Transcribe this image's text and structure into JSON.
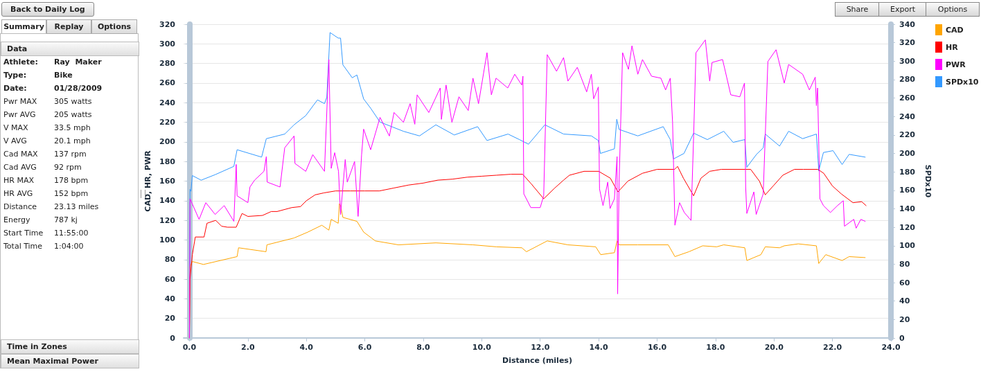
{
  "chart_data": {
    "type": "line",
    "xlabel": "Distance (miles)",
    "ylabel": "CAD, HR, PWR",
    "y2label": "SPDx10",
    "xlim": [
      -0.2,
      24
    ],
    "xticks": [
      {
        "value": 0,
        "label": "0.0"
      },
      {
        "value": 2,
        "label": "2.0"
      },
      {
        "value": 4,
        "label": "4.0"
      },
      {
        "value": 6,
        "label": "6.0"
      },
      {
        "value": 8,
        "label": "8.0"
      },
      {
        "value": 10,
        "label": "10.0"
      },
      {
        "value": 12,
        "label": "12.0"
      },
      {
        "value": 14,
        "label": "14.0"
      },
      {
        "value": 16,
        "label": "16.0"
      },
      {
        "value": 18,
        "label": "18.0"
      },
      {
        "value": 20,
        "label": "20.0"
      },
      {
        "value": 22,
        "label": "22.0"
      },
      {
        "value": 24,
        "label": "24.0"
      }
    ],
    "ylim": [
      0,
      320
    ],
    "yticks": [
      0,
      20,
      40,
      60,
      80,
      100,
      120,
      140,
      160,
      180,
      200,
      220,
      240,
      260,
      280,
      300,
      320
    ],
    "y2lim": [
      0,
      340
    ],
    "y2ticks": [
      0,
      20,
      40,
      60,
      80,
      100,
      120,
      140,
      160,
      180,
      200,
      220,
      240,
      260,
      280,
      300,
      320,
      340
    ],
    "grid": "y",
    "legend": "top right",
    "marker": "none",
    "line_style": "solid",
    "series": [
      {
        "name": "CAD",
        "color": "#ffa500",
        "x": [
          0,
          0.02,
          0.1,
          0.48,
          1.63,
          1.68,
          2.62,
          2.65,
          3.58,
          4.05,
          4.53,
          4.77,
          4.85,
          5.09,
          5.13,
          5.17,
          5.25,
          5.73,
          5.96,
          6.36,
          7.15,
          8.43,
          9.7,
          10.5,
          11.37,
          11.53,
          12.24,
          12.95,
          13.9,
          14.07,
          14.54,
          14.63,
          14.7,
          15.34,
          16.38,
          16.61,
          17.09,
          17.56,
          18.04,
          18.28,
          19.0,
          19.07,
          19.55,
          19.7,
          20.19,
          20.35,
          20.83,
          21.45,
          21.53,
          21.77,
          22.33,
          22.57,
          23.12
        ],
        "values": [
          0,
          73,
          78,
          75,
          83,
          92,
          88,
          95,
          102,
          108,
          115,
          110,
          121,
          117,
          137,
          135,
          123,
          119,
          108,
          99,
          95,
          97,
          95,
          93,
          92,
          88,
          99,
          95,
          93,
          85,
          87,
          99,
          95,
          95,
          95,
          83,
          88,
          94,
          93,
          95,
          92,
          79,
          85,
          93,
          92,
          94,
          96,
          94,
          76,
          85,
          79,
          83,
          82
        ]
      },
      {
        "name": "HR",
        "color": "#ff0000",
        "x": [
          0,
          0.02,
          0.1,
          0.2,
          0.5,
          0.6,
          0.9,
          1.1,
          1.3,
          1.6,
          1.8,
          2.0,
          2.5,
          2.8,
          3.0,
          3.5,
          3.8,
          4.0,
          4.3,
          4.6,
          5.0,
          5.5,
          6.0,
          6.5,
          7.0,
          7.5,
          8.0,
          8.5,
          9.0,
          9.5,
          10.0,
          10.5,
          11.0,
          11.4,
          11.7,
          12.12,
          12.5,
          12.8,
          13.0,
          13.5,
          14.0,
          14.4,
          14.66,
          15.0,
          15.5,
          16.0,
          16.6,
          16.7,
          16.9,
          17.25,
          17.5,
          17.8,
          18.2,
          19.0,
          19.2,
          19.5,
          19.7,
          20.0,
          20.3,
          20.7,
          21.0,
          21.5,
          21.7,
          22.0,
          22.3,
          22.7,
          23.0,
          23.15
        ],
        "values": [
          0,
          60,
          85,
          103,
          103,
          117,
          120,
          114,
          113,
          113,
          127,
          124,
          125,
          129,
          129,
          133,
          134,
          140,
          146,
          148,
          150,
          150,
          150,
          150,
          153,
          156,
          158,
          161,
          162,
          164,
          165,
          166,
          167,
          167,
          157,
          142,
          153,
          161,
          166,
          170,
          170,
          163,
          149,
          160,
          168,
          172,
          172,
          175,
          163,
          145,
          163,
          170,
          172,
          172,
          172,
          160,
          146,
          156,
          166,
          172,
          172,
          172,
          168,
          155,
          147,
          138,
          139,
          135
        ]
      },
      {
        "name": "PWR",
        "color": "#ff00ff",
        "x": [
          0,
          0.02,
          0.33,
          0.56,
          0.88,
          1.19,
          1.52,
          1.6,
          1.63,
          2.0,
          2.07,
          2.23,
          2.55,
          2.63,
          2.66,
          3.1,
          3.26,
          3.58,
          3.61,
          3.98,
          4.22,
          4.62,
          4.77,
          4.85,
          4.97,
          5.1,
          5.17,
          5.33,
          5.4,
          5.65,
          5.77,
          5.89,
          5.96,
          6.2,
          6.52,
          6.84,
          7.0,
          7.32,
          7.55,
          7.71,
          7.79,
          8.19,
          8.58,
          8.62,
          8.78,
          8.98,
          9.22,
          9.54,
          9.7,
          9.89,
          10.18,
          10.33,
          10.49,
          10.89,
          11.13,
          11.37,
          11.41,
          11.44,
          11.68,
          12.0,
          12.12,
          12.24,
          12.56,
          12.8,
          12.95,
          13.27,
          13.59,
          13.75,
          13.83,
          13.99,
          14.03,
          14.15,
          14.31,
          14.39,
          14.54,
          14.63,
          14.65,
          14.7,
          14.82,
          15.02,
          15.14,
          15.34,
          15.5,
          15.81,
          16.13,
          16.29,
          16.45,
          16.53,
          16.61,
          16.77,
          16.93,
          17.16,
          17.25,
          17.33,
          17.65,
          17.8,
          17.88,
          18.24,
          18.52,
          18.83,
          18.99,
          19.03,
          19.07,
          19.31,
          19.39,
          19.63,
          19.79,
          20.07,
          20.35,
          20.5,
          20.98,
          21.21,
          21.41,
          21.45,
          21.49,
          21.57,
          21.69,
          21.93,
          22.17,
          22.37,
          22.41,
          22.73,
          22.81,
          22.97,
          23.12
        ],
        "values": [
          0,
          142,
          121,
          138,
          126,
          135,
          119,
          177,
          145,
          138,
          154,
          161,
          170,
          185,
          159,
          154,
          194,
          206,
          178,
          170,
          187,
          170,
          284,
          173,
          189,
          170,
          126,
          182,
          159,
          180,
          124,
          187,
          213,
          192,
          225,
          206,
          230,
          220,
          239,
          218,
          248,
          230,
          255,
          223,
          258,
          220,
          246,
          232,
          265,
          239,
          291,
          248,
          265,
          255,
          269,
          258,
          267,
          147,
          133,
          133,
          145,
          289,
          272,
          286,
          262,
          276,
          251,
          269,
          244,
          256,
          152,
          135,
          159,
          132,
          142,
          185,
          45,
          159,
          291,
          274,
          298,
          269,
          284,
          267,
          265,
          253,
          265,
          220,
          115,
          138,
          128,
          120,
          206,
          291,
          304,
          262,
          281,
          284,
          248,
          246,
          260,
          154,
          127,
          149,
          126,
          147,
          282,
          294,
          260,
          279,
          269,
          253,
          266,
          237,
          255,
          142,
          135,
          128,
          135,
          140,
          114,
          121,
          112,
          121,
          119
        ]
      },
      {
        "name": "SPDx10",
        "color": "#3399ff",
        "axis": "y2",
        "x": [
          0,
          0.02,
          0.05,
          0.1,
          0.4,
          0.88,
          1.52,
          1.63,
          2.47,
          2.63,
          3.26,
          3.58,
          3.98,
          4.38,
          4.62,
          4.7,
          4.81,
          5.09,
          5.17,
          5.25,
          5.57,
          5.73,
          5.96,
          6.2,
          6.52,
          7.32,
          7.87,
          8.43,
          9.06,
          9.86,
          10.18,
          10.9,
          11.29,
          11.6,
          12.16,
          12.8,
          13.75,
          13.99,
          14.06,
          14.54,
          14.62,
          14.7,
          15.34,
          16.21,
          16.45,
          16.56,
          16.92,
          17.25,
          17.72,
          18.28,
          18.6,
          19.0,
          19.07,
          19.4,
          19.63,
          19.7,
          20.19,
          20.5,
          20.98,
          21.45,
          21.53,
          21.69,
          22.02,
          22.33,
          22.57,
          23.12
        ],
        "values": [
          0,
          161,
          159,
          176,
          171,
          177,
          186,
          204,
          196,
          216,
          221,
          231,
          241,
          258,
          254,
          261,
          331,
          325,
          325,
          296,
          282,
          285,
          259,
          249,
          234,
          224,
          219,
          231,
          220,
          229,
          214,
          221,
          215,
          210,
          231,
          221,
          219,
          214,
          200,
          205,
          237,
          226,
          219,
          229,
          215,
          194,
          200,
          222,
          215,
          224,
          212,
          215,
          185,
          199,
          206,
          221,
          208,
          224,
          216,
          221,
          181,
          201,
          203,
          188,
          199,
          196
        ]
      }
    ],
    "annotations": [
      "Back to Daily Log",
      "Summary",
      "Replay",
      "Options",
      "Data",
      "Athlete:",
      "Ray  Maker",
      "Type:",
      "Bike",
      "Date:",
      "01/28/2009",
      "Pwr MAX",
      "305 watts",
      "Pwr AVG",
      "205 watts",
      "V MAX",
      "33.5 mph",
      "V AVG",
      "20.1 mph",
      "Cad MAX",
      "137 rpm",
      "Cad AVG",
      "92 rpm",
      "HR MAX",
      "178 bpm",
      "HR AVG",
      "152 bpm",
      "Distance",
      "23.13 miles",
      "Energy",
      "787 kj",
      "Start Time",
      "11:55:00",
      "Total Time",
      "1:04:00",
      "Time in Zones",
      "Mean Maximal Power",
      "Share",
      "Export",
      "Options"
    ]
  }
}
